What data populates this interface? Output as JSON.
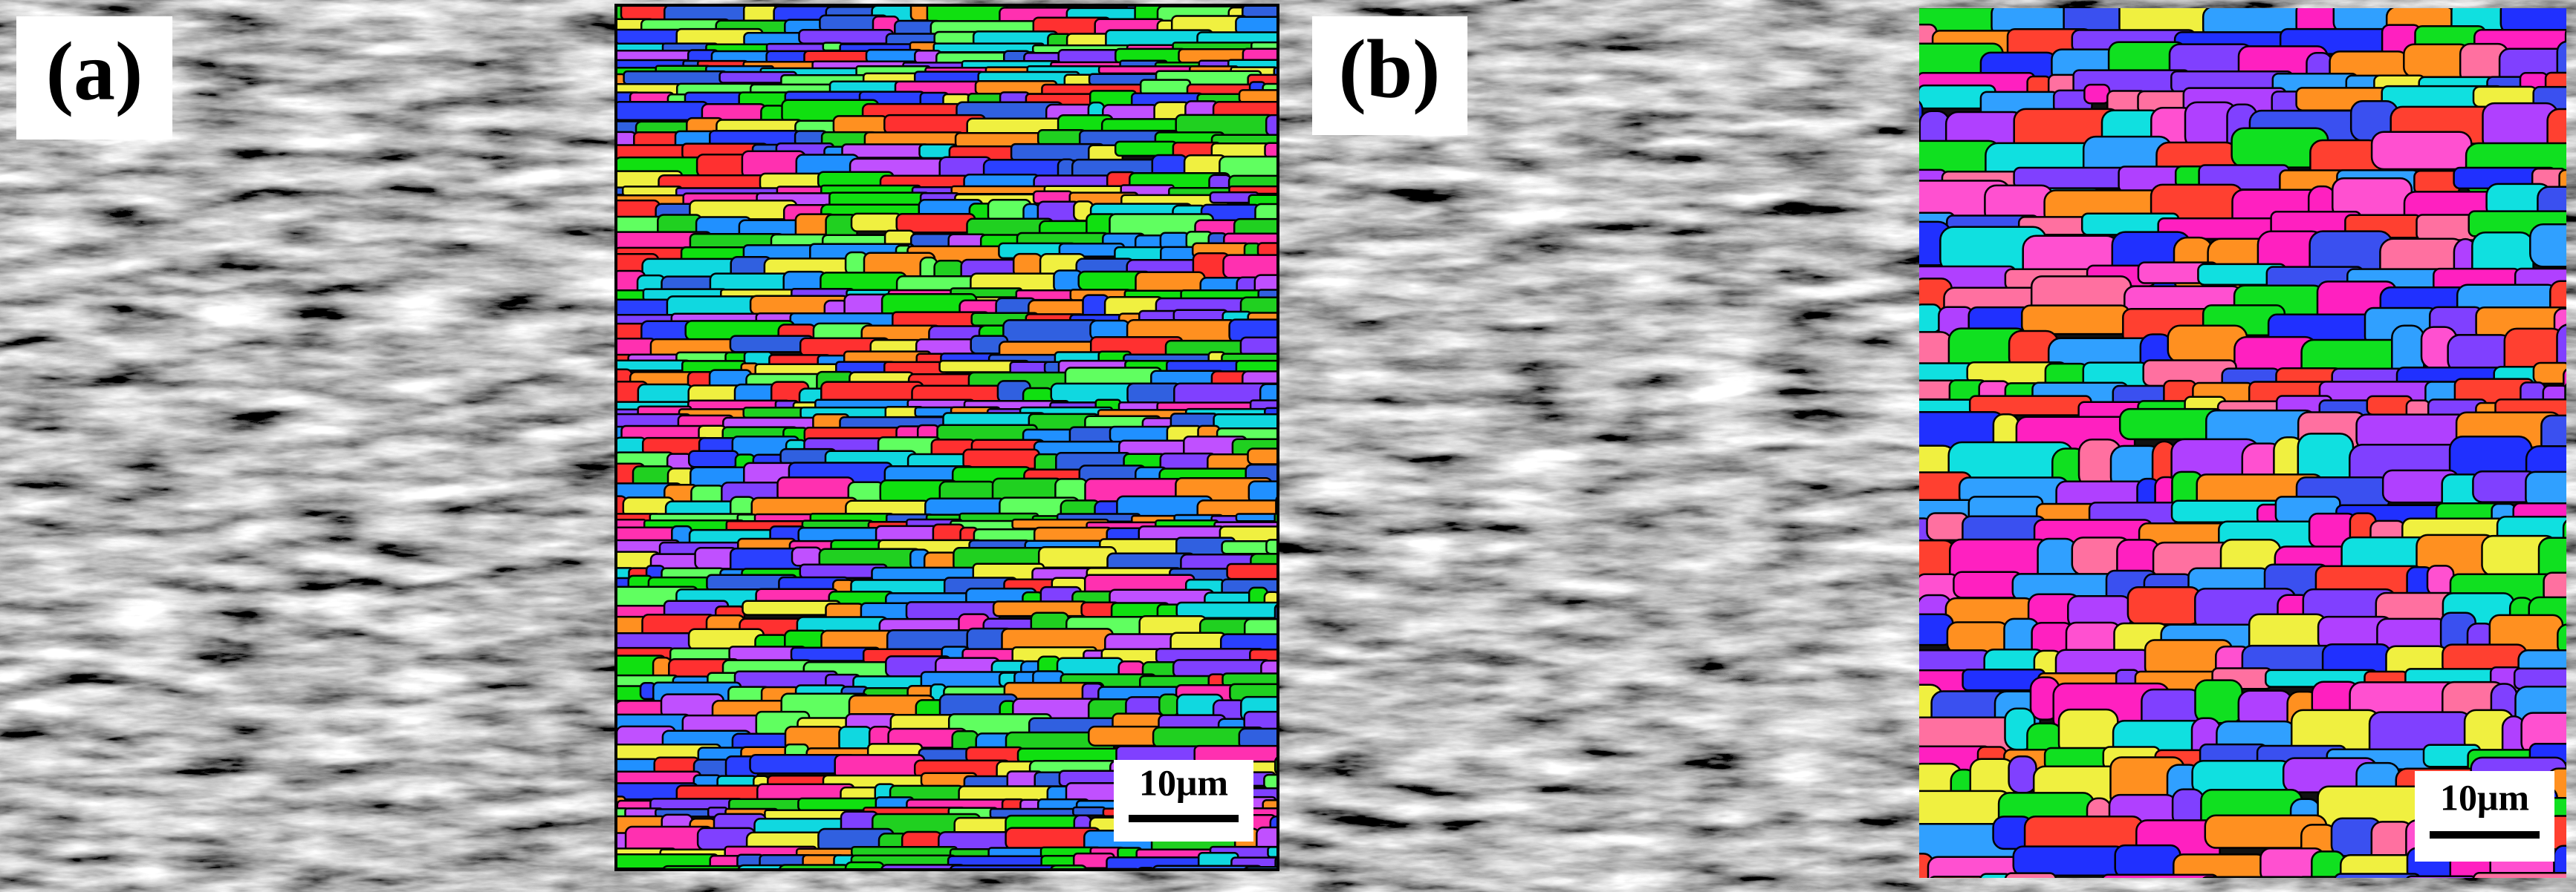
{
  "panels": [
    {
      "label": "(a)",
      "scale_bar": "10μm"
    },
    {
      "label": "(b)",
      "scale_bar": "10μm"
    }
  ]
}
